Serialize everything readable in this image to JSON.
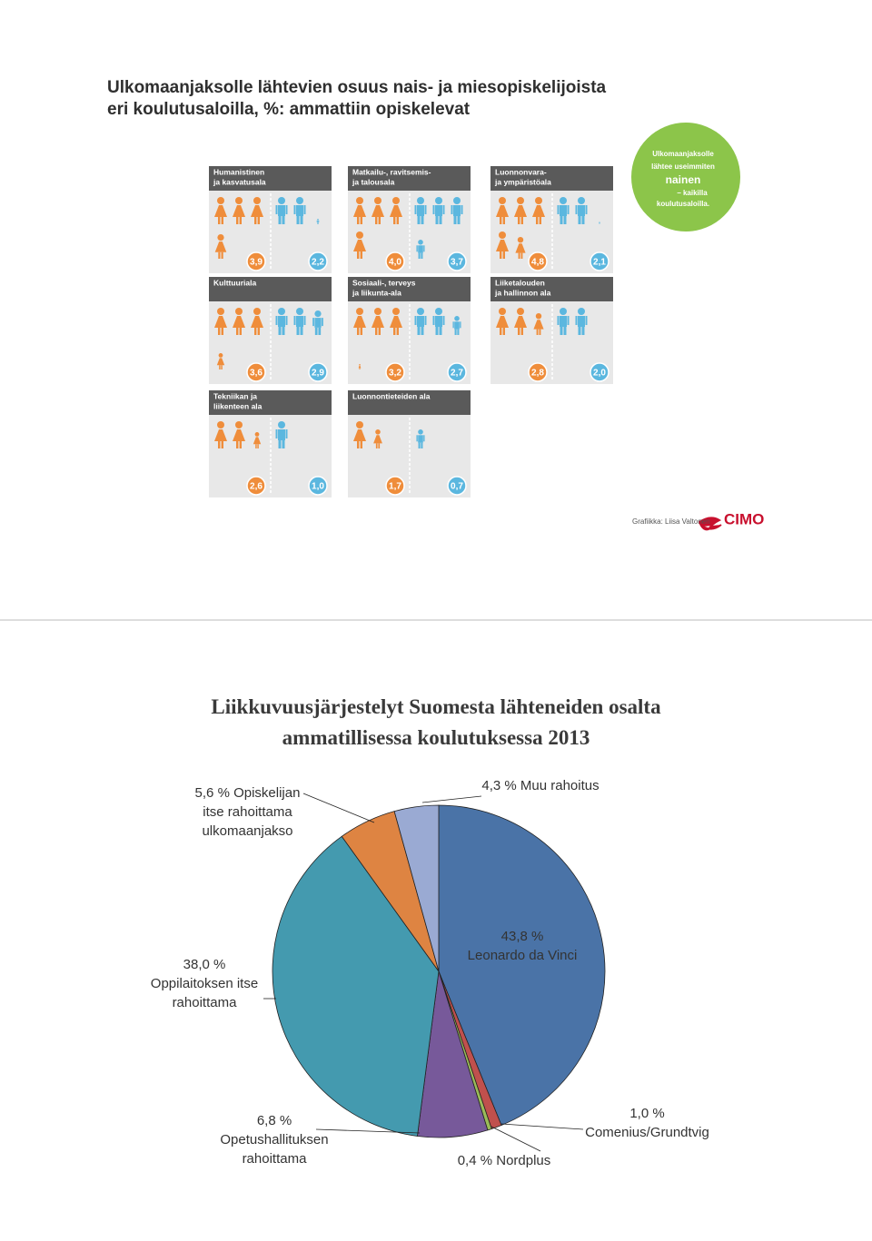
{
  "infographic": {
    "title": [
      "Ulkomaanjaksolle lähtevien osuus nais- ja miesopiskelijoista",
      "eri koulutusaloilla, %: ammattiin opiskelevat"
    ],
    "callout": [
      "Ulkomaanjaksolle",
      "lähtee useimmiten",
      "nainen",
      "– kaikilla",
      "koulutusaloilla."
    ],
    "panels": [
      {
        "title": [
          "Humanistinen",
          "ja kasvatusala"
        ],
        "female": 3.9,
        "female_label": "3,9",
        "male": 2.2,
        "male_label": "2,2"
      },
      {
        "title": [
          "Matkailu-, ravitsemis-",
          "ja talousala"
        ],
        "female": 4.0,
        "female_label": "4,0",
        "male": 3.7,
        "male_label": "3,7"
      },
      {
        "title": [
          "Luonnonvara-",
          "ja ympäristöala"
        ],
        "female": 4.8,
        "female_label": "4,8",
        "male": 2.1,
        "male_label": "2,1"
      },
      {
        "title": [
          "Kulttuuriala"
        ],
        "female": 3.6,
        "female_label": "3,6",
        "male": 2.9,
        "male_label": "2,9"
      },
      {
        "title": [
          "Sosiaali-, terveys",
          "ja liikunta-ala"
        ],
        "female": 3.2,
        "female_label": "3,2",
        "male": 2.7,
        "male_label": "2,7"
      },
      {
        "title": [
          "Liiketalouden",
          "ja hallinnon ala"
        ],
        "female": 2.8,
        "female_label": "2,8",
        "male": 2.0,
        "male_label": "2,0"
      },
      {
        "title": [
          "Tekniikan ja",
          "liikenteen ala"
        ],
        "female": 2.6,
        "female_label": "2,6",
        "male": 1.0,
        "male_label": "1,0"
      },
      {
        "title": [
          "Luonnontieteiden ala"
        ],
        "female": 1.7,
        "female_label": "1,7",
        "male": 0.7,
        "male_label": "0,7"
      }
    ],
    "credit": "Grafiikka: Liisa Valtonen",
    "logo": "CIMO"
  },
  "chart_data": {
    "type": "pie",
    "title": "Liikkuvuusjärjestelyt Suomesta lähteneiden osalta ammatillisessa koulutuksessa 2013",
    "categories": [
      "Leonardo da Vinci",
      "Comenius/Grundtvig",
      "Nordplus",
      "Opetushallituksen rahoittama",
      "Oppilaitoksen itse rahoittama",
      "Opiskelijan itse rahoittama ulkomaanjakso",
      "Muu rahoitus"
    ],
    "values": [
      43.8,
      1.0,
      0.4,
      6.8,
      38.0,
      5.6,
      4.3
    ],
    "value_labels": [
      "43,8 %",
      "1,0 %",
      "0,4 %",
      "6,8 %",
      "38,0 %",
      "5,6 %",
      "4,3 %"
    ],
    "colors": [
      "#4a73a7",
      "#c0504d",
      "#9bbb59",
      "#77599a",
      "#449aaf",
      "#de8442",
      "#9aaad3"
    ]
  }
}
